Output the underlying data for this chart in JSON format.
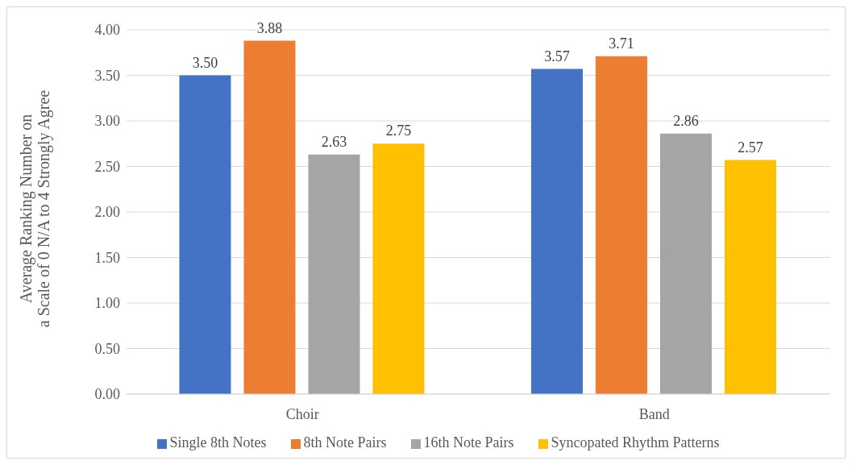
{
  "chart_data": {
    "type": "bar",
    "ylabel": "Average Ranking Number on\na Scale of 0 N/A to 4 Strongly Agree",
    "categories": [
      "Choir",
      "Band"
    ],
    "series": [
      {
        "name": "Single 8th Notes",
        "color": "#4472c4",
        "values": [
          3.5,
          3.57
        ],
        "value_labels": [
          "3.50",
          "3.57"
        ]
      },
      {
        "name": "8th Note Pairs",
        "color": "#ed7d31",
        "values": [
          3.88,
          3.71
        ],
        "value_labels": [
          "3.88",
          "3.71"
        ]
      },
      {
        "name": "16th Note Pairs",
        "color": "#a5a5a5",
        "values": [
          2.63,
          2.86
        ],
        "value_labels": [
          "2.63",
          "2.86"
        ]
      },
      {
        "name": "Syncopated Rhythm Patterns",
        "color": "#ffc000",
        "values": [
          2.75,
          2.57
        ],
        "value_labels": [
          "2.75",
          "2.57"
        ]
      }
    ],
    "ylim": [
      0,
      4
    ],
    "yticks": [
      {
        "value": 0,
        "label": "0.00"
      },
      {
        "value": 0.5,
        "label": "0.50"
      },
      {
        "value": 1,
        "label": "1.00"
      },
      {
        "value": 1.5,
        "label": "1.50"
      },
      {
        "value": 2,
        "label": "2.00"
      },
      {
        "value": 2.5,
        "label": "2.50"
      },
      {
        "value": 3,
        "label": "3.00"
      },
      {
        "value": 3.5,
        "label": "3.50"
      },
      {
        "value": 4,
        "label": "4.00"
      }
    ],
    "grid": "y",
    "legend": "bottom"
  }
}
